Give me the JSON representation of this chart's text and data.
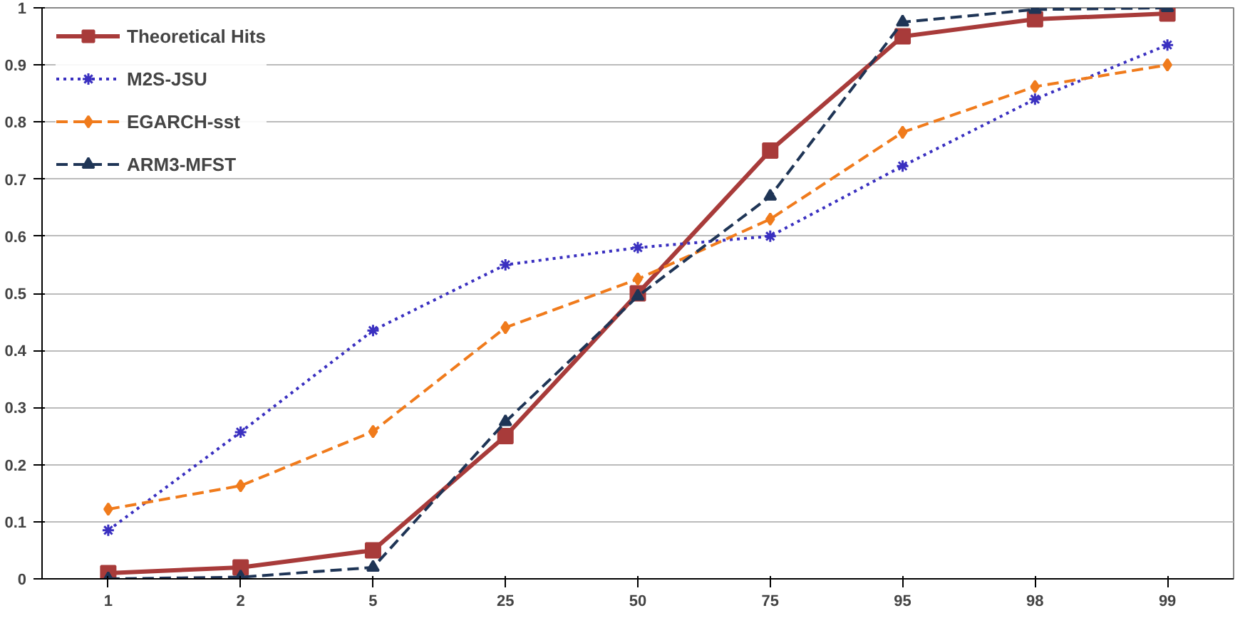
{
  "chart_data": {
    "type": "line",
    "categories": [
      "1",
      "2",
      "5",
      "25",
      "50",
      "75",
      "95",
      "98",
      "99"
    ],
    "ylim": [
      0,
      1
    ],
    "yticks": [
      0,
      0.1,
      0.2,
      0.3,
      0.4,
      0.5,
      0.6,
      0.7,
      0.8,
      0.9,
      1
    ],
    "grid": "y",
    "legend": "top left",
    "series": [
      {
        "name": "Theoretical Hits",
        "color": "#a83b3a",
        "marker": "square",
        "line_style": "solid",
        "values": [
          0.01,
          0.02,
          0.05,
          0.25,
          0.5,
          0.75,
          0.95,
          0.98,
          0.99
        ]
      },
      {
        "name": "M2S-JSU",
        "color": "#3a30c0",
        "marker": "cross",
        "line_style": "dotted",
        "values": [
          0.085,
          0.257,
          0.435,
          0.55,
          0.58,
          0.6,
          0.723,
          0.84,
          0.935
        ]
      },
      {
        "name": "EGARCH-sst",
        "color": "#f07b1c",
        "marker": "diamond",
        "line_style": "dashed",
        "values": [
          0.122,
          0.163,
          0.258,
          0.44,
          0.525,
          0.63,
          0.782,
          0.862,
          0.9
        ]
      },
      {
        "name": "ARM3-MFST",
        "color": "#1f3556",
        "marker": "triangle",
        "line_style": "dashed",
        "values": [
          0.0,
          0.003,
          0.02,
          0.275,
          0.495,
          0.67,
          0.975,
          0.997,
          1.0
        ]
      }
    ]
  }
}
